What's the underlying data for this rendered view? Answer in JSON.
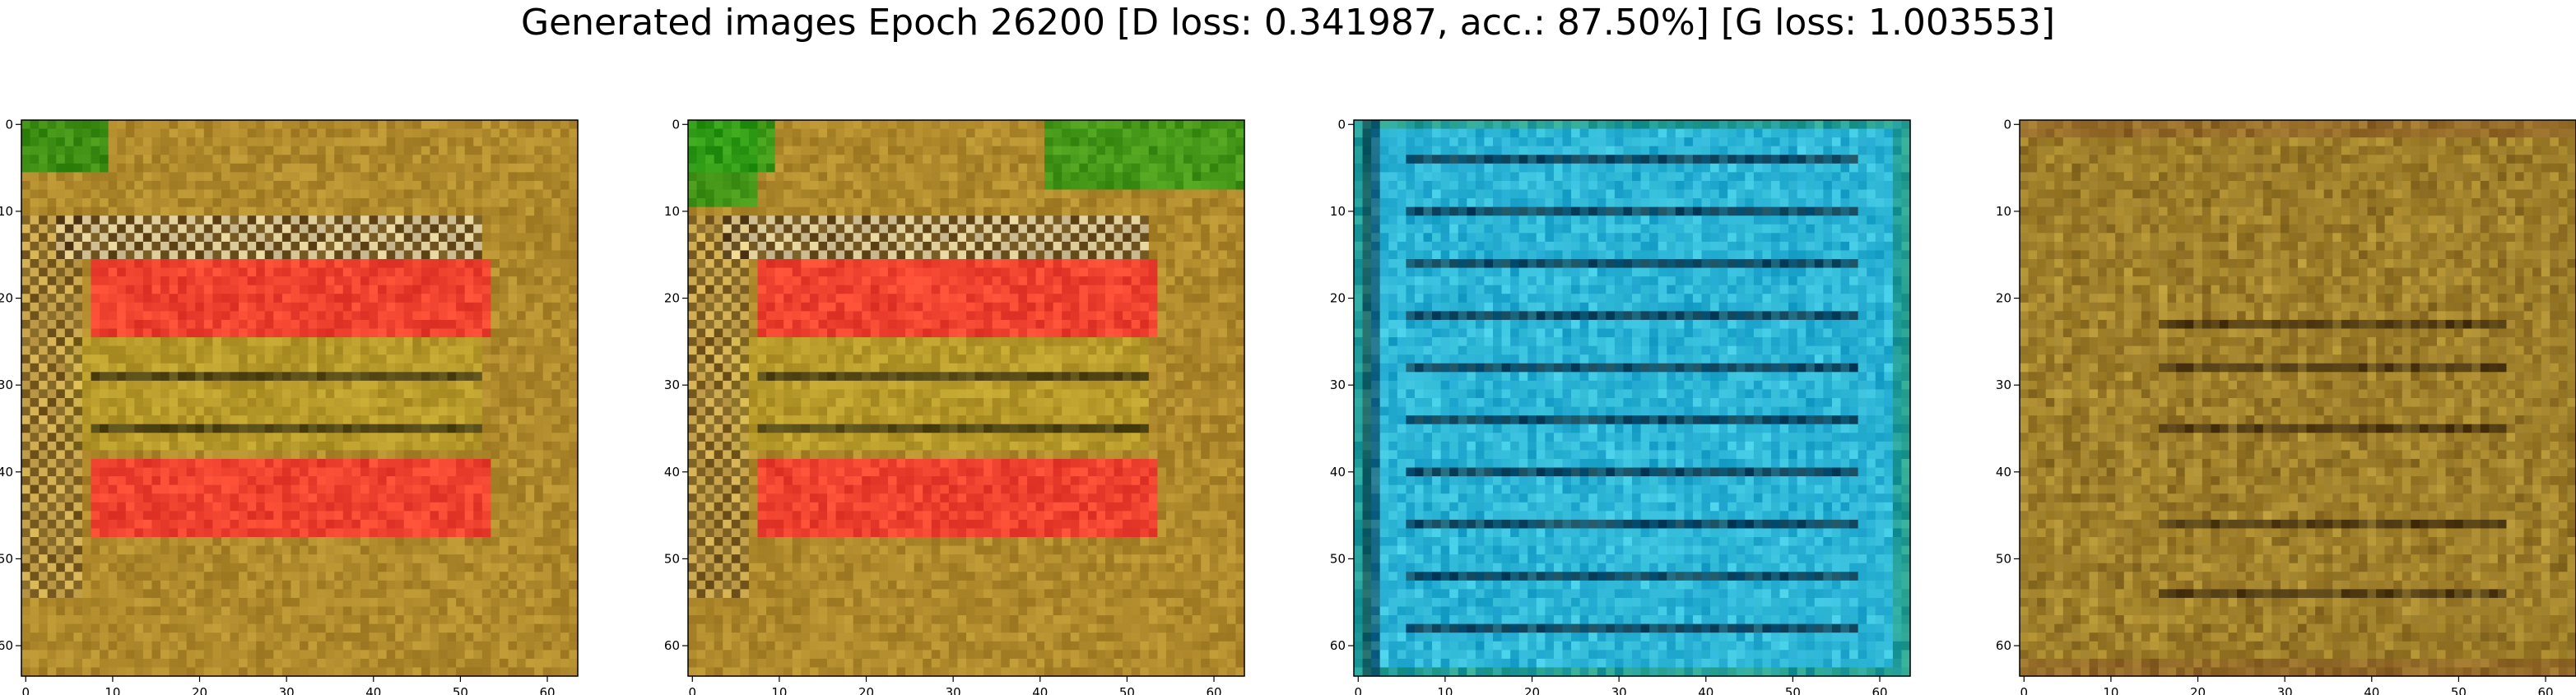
{
  "figure": {
    "title": "Generated images Epoch 26200 [D loss: 0.341987, acc.: 87.50%] [G loss: 1.003553]"
  },
  "axes_style": {
    "x_ticks": [
      "0",
      "10",
      "20",
      "30",
      "40",
      "50",
      "60"
    ],
    "y_ticks": [
      "0",
      "10",
      "20",
      "30",
      "40",
      "50",
      "60"
    ],
    "xlim": [
      -0.5,
      63.5
    ],
    "ylim": [
      63.5,
      -0.5
    ],
    "image_size": 64
  },
  "panels": [
    {
      "name": "generated-image-1",
      "description_colors": {
        "base": "#b08a2c",
        "accent": "#ff3030",
        "accent2": "#2a8f10",
        "highlight": "#f4f0e0"
      },
      "kind": "red-stripes"
    },
    {
      "name": "generated-image-2",
      "description_colors": {
        "base": "#b08a2c",
        "accent": "#ff3030",
        "accent2": "#2a9a14",
        "highlight": "#f4f0e0"
      },
      "kind": "red-stripes-2"
    },
    {
      "name": "generated-image-3",
      "description_colors": {
        "base": "#25b0d0",
        "accent": "#0a2a40",
        "accent2": "#1f8f60",
        "highlight": "#60e0ff"
      },
      "kind": "blue-lines"
    },
    {
      "name": "generated-image-4",
      "description_colors": {
        "base": "#a8882c",
        "accent": "#2a1a08",
        "accent2": "#8a6a20",
        "highlight": "#d8c060"
      },
      "kind": "olive-lines"
    }
  ]
}
